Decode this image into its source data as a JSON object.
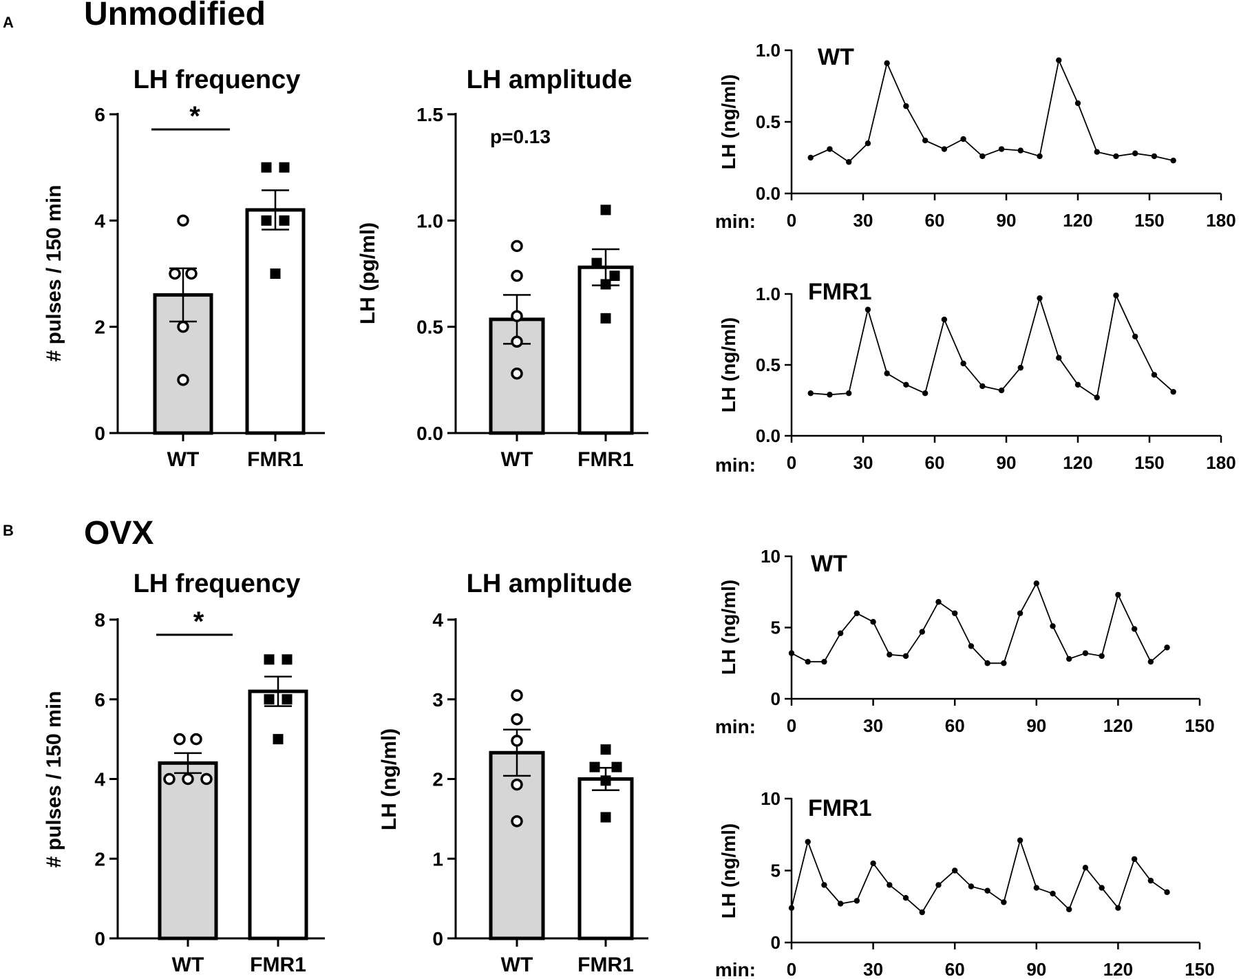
{
  "panels": {
    "a": {
      "letter": "A",
      "title": "Unmodified"
    },
    "b": {
      "letter": "B",
      "title": "OVX"
    }
  },
  "colors": {
    "wt_bar": "#d6d6d6",
    "fmr1_bar": "#ffffff",
    "ink": "#000000"
  },
  "chart_data": [
    {
      "id": "a_freq",
      "type": "bar",
      "title": "LH frequency",
      "ylabel": "# pulses / 150 min",
      "xlabel": "",
      "categories": [
        "WT",
        "FMR1"
      ],
      "values": [
        2.6,
        4.2
      ],
      "sem": [
        0.5,
        0.37
      ],
      "points": [
        [
          4,
          3,
          3,
          2,
          1
        ],
        [
          5,
          5,
          4,
          4,
          3
        ]
      ],
      "ylim": [
        0,
        6
      ],
      "yticks": [
        "0",
        "2",
        "4",
        "6"
      ],
      "ytick_values": [
        0,
        2,
        4,
        6
      ],
      "annotation": "*"
    },
    {
      "id": "a_amp",
      "type": "bar",
      "title": "LH amplitude",
      "ylabel": "LH  (pg/ml)",
      "xlabel": "",
      "categories": [
        "WT",
        "FMR1"
      ],
      "values": [
        0.535,
        0.78
      ],
      "sem": [
        0.115,
        0.085
      ],
      "points": [
        [
          0.88,
          0.74,
          0.55,
          0.43,
          0.28
        ],
        [
          1.05,
          0.8,
          0.74,
          0.7,
          0.54
        ]
      ],
      "ylim": [
        0,
        1.5
      ],
      "yticks": [
        "0.0",
        "0.5",
        "1.0",
        "1.5"
      ],
      "ytick_values": [
        0,
        0.5,
        1,
        1.5
      ],
      "annotation": "p=0.13"
    },
    {
      "id": "a_wt",
      "type": "line",
      "title": "WT",
      "ylabel": "LH  (ng/ml)",
      "xlabel": "min:",
      "x": [
        8,
        16,
        24,
        32,
        40,
        48,
        56,
        64,
        72,
        80,
        88,
        96,
        104,
        112,
        120,
        128,
        136,
        144,
        152,
        160
      ],
      "y": [
        0.25,
        0.31,
        0.22,
        0.35,
        0.91,
        0.61,
        0.37,
        0.31,
        0.38,
        0.26,
        0.31,
        0.3,
        0.26,
        0.93,
        0.63,
        0.29,
        0.26,
        0.28,
        0.26,
        0.23
      ],
      "xlim": [
        0,
        180
      ],
      "xticks": [
        "0",
        "30",
        "60",
        "90",
        "120",
        "150",
        "180"
      ],
      "xtick_values": [
        0,
        30,
        60,
        90,
        120,
        150,
        180
      ],
      "ylim": [
        0,
        1
      ],
      "yticks": [
        "0.0",
        "0.5",
        "1.0"
      ],
      "ytick_values": [
        0,
        0.5,
        1
      ]
    },
    {
      "id": "a_fmr1",
      "type": "line",
      "title": "FMR1",
      "ylabel": "LH  (ng/ml)",
      "xlabel": "min:",
      "x": [
        8,
        16,
        24,
        32,
        40,
        48,
        56,
        64,
        72,
        80,
        88,
        96,
        104,
        112,
        120,
        128,
        136,
        144,
        152,
        160
      ],
      "y": [
        0.3,
        0.29,
        0.3,
        0.89,
        0.44,
        0.36,
        0.3,
        0.82,
        0.51,
        0.35,
        0.32,
        0.48,
        0.97,
        0.55,
        0.36,
        0.27,
        0.99,
        0.7,
        0.43,
        0.31
      ],
      "xlim": [
        0,
        180
      ],
      "xticks": [
        "0",
        "30",
        "60",
        "90",
        "120",
        "150",
        "180"
      ],
      "xtick_values": [
        0,
        30,
        60,
        90,
        120,
        150,
        180
      ],
      "ylim": [
        0,
        1
      ],
      "yticks": [
        "0.0",
        "0.5",
        "1.0"
      ],
      "ytick_values": [
        0,
        0.5,
        1
      ]
    },
    {
      "id": "b_freq",
      "type": "bar",
      "title": "LH frequency",
      "ylabel": "# pulses / 150 min",
      "xlabel": "",
      "categories": [
        "WT",
        "FMR1"
      ],
      "values": [
        4.4,
        6.2
      ],
      "sem": [
        0.25,
        0.37
      ],
      "points": [
        [
          5,
          5,
          4,
          4,
          4
        ],
        [
          7,
          7,
          6,
          6,
          5
        ]
      ],
      "ylim": [
        0,
        8
      ],
      "yticks": [
        "0",
        "2",
        "4",
        "6",
        "8"
      ],
      "ytick_values": [
        0,
        2,
        4,
        6,
        8
      ],
      "annotation": "*"
    },
    {
      "id": "b_amp",
      "type": "bar",
      "title": "LH amplitude",
      "ylabel": "LH  (ng/ml)",
      "xlabel": "",
      "categories": [
        "WT",
        "FMR1"
      ],
      "values": [
        2.33,
        2.0
      ],
      "sem": [
        0.29,
        0.14
      ],
      "points": [
        [
          3.05,
          2.75,
          2.48,
          1.93,
          1.47
        ],
        [
          2.37,
          2.15,
          2.15,
          1.98,
          1.52
        ]
      ],
      "ylim": [
        0,
        4
      ],
      "yticks": [
        "0",
        "1",
        "2",
        "3",
        "4"
      ],
      "ytick_values": [
        0,
        1,
        2,
        3,
        4
      ],
      "annotation": ""
    },
    {
      "id": "b_wt",
      "type": "line",
      "title": "WT",
      "ylabel": "LH  (ng/ml)",
      "xlabel": "min:",
      "x": [
        0,
        6,
        12,
        18,
        24,
        30,
        36,
        42,
        48,
        54,
        60,
        66,
        72,
        78,
        84,
        90,
        96,
        102,
        108,
        114,
        120,
        126,
        132,
        138
      ],
      "y": [
        3.2,
        2.6,
        2.6,
        4.6,
        6.0,
        5.4,
        3.1,
        3.0,
        4.7,
        6.8,
        6.0,
        3.7,
        2.5,
        2.5,
        6.0,
        8.1,
        5.1,
        2.8,
        3.2,
        3.0,
        7.3,
        4.9,
        2.6,
        3.6
      ],
      "xlim": [
        0,
        150
      ],
      "xticks": [
        "0",
        "30",
        "60",
        "90",
        "120",
        "150"
      ],
      "xtick_values": [
        0,
        30,
        60,
        90,
        120,
        150
      ],
      "ylim": [
        0,
        10
      ],
      "yticks": [
        "0",
        "5",
        "10"
      ],
      "ytick_values": [
        0,
        5,
        10
      ]
    },
    {
      "id": "b_fmr1",
      "type": "line",
      "title": "FMR1",
      "ylabel": "LH  (ng/ml)",
      "xlabel": "min:",
      "x": [
        0,
        6,
        12,
        18,
        24,
        30,
        36,
        42,
        48,
        54,
        60,
        66,
        72,
        78,
        84,
        90,
        96,
        102,
        108,
        114,
        120,
        126,
        132,
        138
      ],
      "y": [
        2.4,
        7.0,
        4.0,
        2.7,
        2.9,
        5.5,
        4.0,
        3.1,
        2.1,
        4.0,
        5.0,
        3.9,
        3.6,
        2.8,
        7.1,
        3.8,
        3.4,
        2.3,
        5.2,
        3.8,
        2.4,
        5.8,
        4.3,
        3.5
      ],
      "xlim": [
        0,
        150
      ],
      "xticks": [
        "0",
        "30",
        "60",
        "90",
        "120",
        "150"
      ],
      "xtick_values": [
        0,
        30,
        60,
        90,
        120,
        150
      ],
      "ylim": [
        0,
        10
      ],
      "yticks": [
        "0",
        "5",
        "10"
      ],
      "ytick_values": [
        0,
        5,
        10
      ]
    }
  ]
}
